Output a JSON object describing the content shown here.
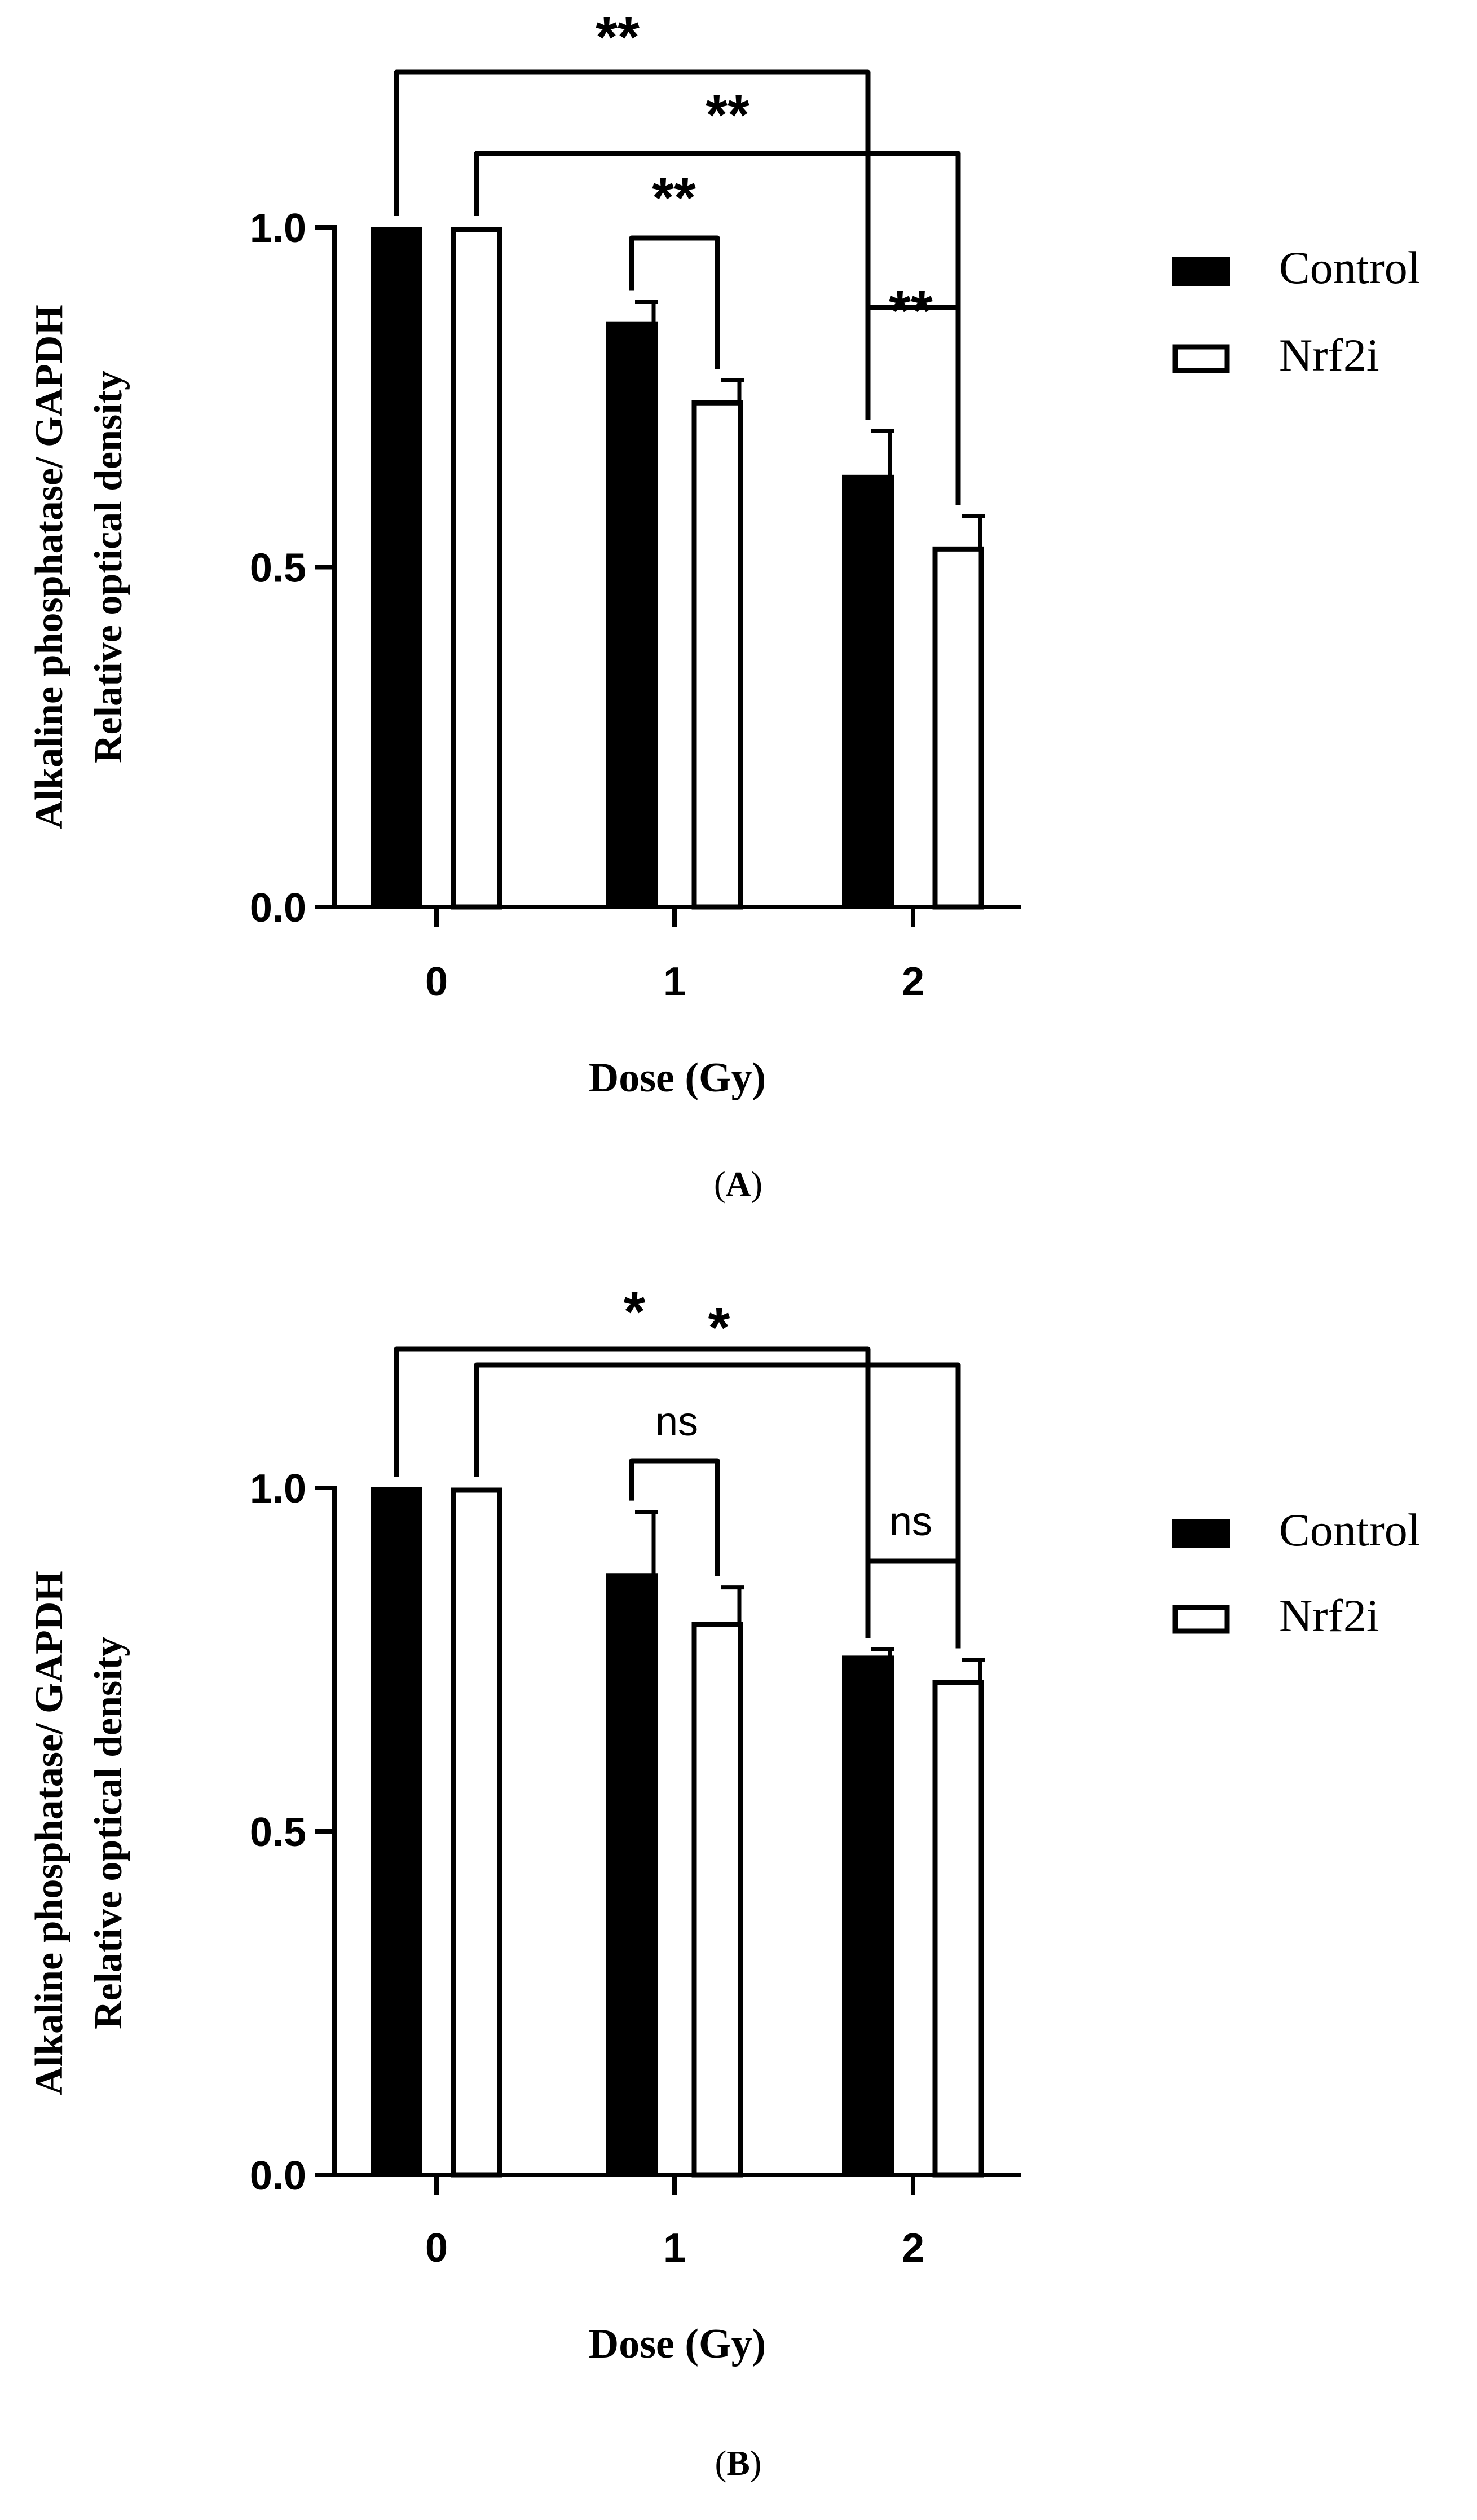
{
  "chart_data": [
    {
      "type": "bar",
      "panel_label": "A",
      "categories": [
        "0",
        "1",
        "2"
      ],
      "xlabel": "Dose (Gy)",
      "ylabel": [
        "Alkaline phosphatase/ GAPDH",
        "Relative optical density"
      ],
      "ylim": [
        0,
        1.0
      ],
      "yticks": [
        "0.0",
        "0.5",
        "1.0"
      ],
      "legend": {
        "position": "right",
        "entries": [
          "Control",
          "Nrf2i"
        ]
      },
      "series": [
        {
          "name": "Control",
          "fill": "#000000",
          "values": [
            1.0,
            0.86,
            0.635
          ],
          "errors": [
            0.0,
            0.03,
            0.065
          ]
        },
        {
          "name": "Nrf2i",
          "fill": "#ffffff",
          "values": [
            1.0,
            0.745,
            0.53
          ],
          "errors": [
            0.0,
            0.03,
            0.045
          ]
        }
      ],
      "significance": [
        {
          "from": "Control@0",
          "to": "Control@2",
          "label": "**"
        },
        {
          "from": "Nrf2i@0",
          "to": "Nrf2i@2",
          "label": "**"
        },
        {
          "from": "Control@1",
          "to": "Nrf2i@1",
          "label": "**"
        },
        {
          "from": "Control@2",
          "to": "Nrf2i@2",
          "label": "**"
        }
      ]
    },
    {
      "type": "bar",
      "panel_label": "B",
      "categories": [
        "0",
        "1",
        "2"
      ],
      "xlabel": "Dose (Gy)",
      "ylabel": [
        "Alkaline phosphatase/ GAPDH",
        "Relative optical density"
      ],
      "ylim": [
        0,
        1.0
      ],
      "yticks": [
        "0.0",
        "0.5",
        "1.0"
      ],
      "legend": {
        "position": "right",
        "entries": [
          "Control",
          "Nrf2i"
        ]
      },
      "series": [
        {
          "name": "Control",
          "fill": "#000000",
          "values": [
            1.0,
            0.875,
            0.755
          ],
          "errors": [
            0.0,
            0.09,
            0.01
          ]
        },
        {
          "name": "Nrf2i",
          "fill": "#ffffff",
          "values": [
            1.0,
            0.805,
            0.72
          ],
          "errors": [
            0.0,
            0.05,
            0.03
          ]
        }
      ],
      "significance": [
        {
          "from": "Control@0",
          "to": "Control@2",
          "label": "*"
        },
        {
          "from": "Nrf2i@0",
          "to": "Nrf2i@2",
          "label": "*"
        },
        {
          "from": "Control@1",
          "to": "Nrf2i@1",
          "label": "ns"
        },
        {
          "from": "Control@2",
          "to": "Nrf2i@2",
          "label": "ns"
        }
      ]
    }
  ]
}
